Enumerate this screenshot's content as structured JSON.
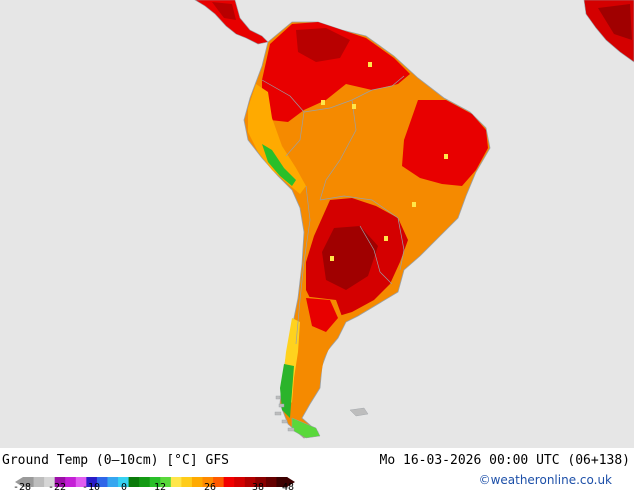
{
  "map": {
    "title": "Ground Temp (0–10cm) [°C] GFS",
    "valid_time": "Mo 16-03-2026 00:00 UTC (06+138)",
    "credit": "©weatheronline.co.uk",
    "region": "South America",
    "colors": {
      "ocean": "#e6e6e6",
      "borders": "#9aa0a6",
      "warm_orange": "#f58a00",
      "hot_red": "#e80000",
      "very_hot": "#b80000",
      "cool_yellow": "#ffd21e",
      "cold_green": "#2bb42b"
    },
    "legend": {
      "unit": "°C",
      "tick_labels": [
        "-28",
        "-22",
        "-10",
        "0",
        "12",
        "26",
        "38",
        "48"
      ],
      "stops": [
        {
          "color": "#9a9a9a"
        },
        {
          "color": "#bdbdbd"
        },
        {
          "color": "#d6d6d6"
        },
        {
          "color": "#9c0fa8"
        },
        {
          "color": "#c41fd6"
        },
        {
          "color": "#e05cf0"
        },
        {
          "color": "#2a1cc7"
        },
        {
          "color": "#2f66e8"
        },
        {
          "color": "#36a6f0"
        },
        {
          "color": "#37d2f2"
        },
        {
          "color": "#0a7a0a"
        },
        {
          "color": "#139a13"
        },
        {
          "color": "#29bf29"
        },
        {
          "color": "#59d83b"
        },
        {
          "color": "#ffe64a"
        },
        {
          "color": "#ffcc1a"
        },
        {
          "color": "#ffaa00"
        },
        {
          "color": "#ff8a00"
        },
        {
          "color": "#ff5a00"
        },
        {
          "color": "#f20000"
        },
        {
          "color": "#d40000"
        },
        {
          "color": "#b00000"
        },
        {
          "color": "#8a0000"
        },
        {
          "color": "#650000"
        },
        {
          "color": "#3d0000"
        }
      ]
    }
  }
}
